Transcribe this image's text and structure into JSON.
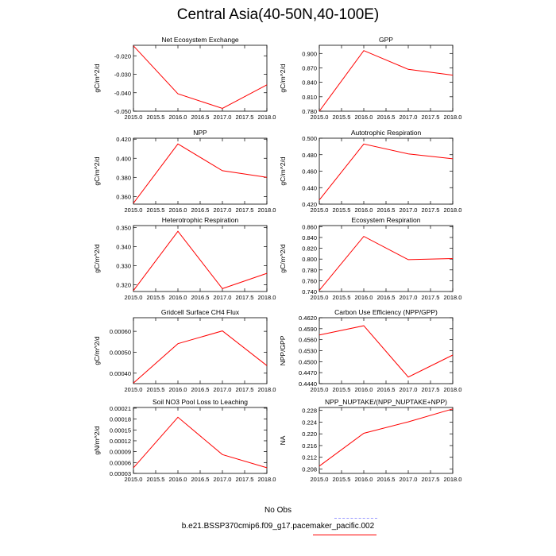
{
  "title": "Central Asia(40-50N,40-100E)",
  "legend": {
    "obs_label": "No Obs",
    "obs_color": "#9999ff",
    "model_label": "b.e21.BSSP370cmip6.f09_g17.pacemaker_pacific.002",
    "model_color": "#ff0000"
  },
  "chart_data": [
    {
      "type": "line",
      "title": "Net Ecosystem Exchange",
      "ylabel": "gC/m^2/d",
      "x": [
        2015,
        2016,
        2017,
        2018
      ],
      "xlim": [
        2015,
        2018
      ],
      "xticks": [
        "2015.0",
        "2015.5",
        "2016.0",
        "2016.5",
        "2017.0",
        "2017.5",
        "2018.0"
      ],
      "series": [
        {
          "values": [
            -0.0146,
            -0.0406,
            -0.0485,
            -0.0357
          ],
          "color": "#ff0000"
        }
      ],
      "ylim": [
        -0.05,
        -0.0143
      ],
      "yticks": [
        "-0.020",
        "-0.030",
        "-0.040",
        "-0.050"
      ],
      "ytick_values": [
        -0.02,
        -0.03,
        -0.04,
        -0.05
      ]
    },
    {
      "type": "line",
      "title": "GPP",
      "ylabel": "gC/m^2/d",
      "x": [
        2015,
        2016,
        2017,
        2018
      ],
      "xlim": [
        2015,
        2018
      ],
      "xticks": [
        "2015.0",
        "2015.5",
        "2016.0",
        "2016.5",
        "2017.0",
        "2017.5",
        "2018.0"
      ],
      "series": [
        {
          "values": [
            0.78,
            0.906,
            0.867,
            0.855
          ],
          "color": "#ff0000"
        }
      ],
      "ylim": [
        0.78,
        0.917
      ],
      "yticks": [
        "0.900",
        "0.870",
        "0.840",
        "0.810",
        "0.780"
      ],
      "ytick_values": [
        0.9,
        0.87,
        0.84,
        0.81,
        0.78
      ]
    },
    {
      "type": "line",
      "title": "NPP",
      "ylabel": "gC/m^2/d",
      "x": [
        2015,
        2016,
        2017,
        2018
      ],
      "xlim": [
        2015,
        2018
      ],
      "xticks": [
        "2015.0",
        "2015.5",
        "2016.0",
        "2016.5",
        "2017.0",
        "2017.5",
        "2018.0"
      ],
      "series": [
        {
          "values": [
            0.353,
            0.415,
            0.387,
            0.38
          ],
          "color": "#ff0000"
        }
      ],
      "ylim": [
        0.352,
        0.421
      ],
      "yticks": [
        "0.420",
        "0.400",
        "0.380",
        "0.360"
      ],
      "ytick_values": [
        0.42,
        0.4,
        0.38,
        0.36
      ]
    },
    {
      "type": "line",
      "title": "Autotrophic Respiration",
      "ylabel": "gC/m^2/d",
      "x": [
        2015,
        2016,
        2017,
        2018
      ],
      "xlim": [
        2015,
        2018
      ],
      "xticks": [
        "2015.0",
        "2015.5",
        "2016.0",
        "2016.5",
        "2017.0",
        "2017.5",
        "2018.0"
      ],
      "series": [
        {
          "values": [
            0.425,
            0.493,
            0.481,
            0.475
          ],
          "color": "#ff0000"
        }
      ],
      "ylim": [
        0.42,
        0.5
      ],
      "yticks": [
        "0.500",
        "0.480",
        "0.460",
        "0.440",
        "0.420"
      ],
      "ytick_values": [
        0.5,
        0.48,
        0.46,
        0.44,
        0.42
      ]
    },
    {
      "type": "line",
      "title": "Heterotrophic Respiration",
      "ylabel": "gC/m^2/d",
      "x": [
        2015,
        2016,
        2017,
        2018
      ],
      "xlim": [
        2015,
        2018
      ],
      "xticks": [
        "2015.0",
        "2015.5",
        "2016.0",
        "2016.5",
        "2017.0",
        "2017.5",
        "2018.0"
      ],
      "series": [
        {
          "values": [
            0.317,
            0.348,
            0.318,
            0.326
          ],
          "color": "#ff0000"
        }
      ],
      "ylim": [
        0.3165,
        0.351
      ],
      "yticks": [
        "0.350",
        "0.340",
        "0.330",
        "0.320"
      ],
      "ytick_values": [
        0.35,
        0.34,
        0.33,
        0.32
      ]
    },
    {
      "type": "line",
      "title": "Ecosystem Respiration",
      "ylabel": "gC/m^2/d",
      "x": [
        2015,
        2016,
        2017,
        2018
      ],
      "xlim": [
        2015,
        2018
      ],
      "xticks": [
        "2015.0",
        "2015.5",
        "2016.0",
        "2016.5",
        "2017.0",
        "2017.5",
        "2018.0"
      ],
      "series": [
        {
          "values": [
            0.742,
            0.842,
            0.799,
            0.801
          ],
          "color": "#ff0000"
        }
      ],
      "ylim": [
        0.74,
        0.862
      ],
      "yticks": [
        "0.860",
        "0.840",
        "0.820",
        "0.800",
        "0.780",
        "0.760",
        "0.740"
      ],
      "ytick_values": [
        0.86,
        0.84,
        0.82,
        0.8,
        0.78,
        0.76,
        0.74
      ]
    },
    {
      "type": "line",
      "title": "Gridcell Surface CH4 Flux",
      "ylabel": "gC/m^2/d",
      "x": [
        2015,
        2016,
        2017,
        2018
      ],
      "xlim": [
        2015,
        2018
      ],
      "xticks": [
        "2015.0",
        "2015.5",
        "2016.0",
        "2016.5",
        "2017.0",
        "2017.5",
        "2018.0"
      ],
      "series": [
        {
          "values": [
            0.000353,
            0.000541,
            0.000602,
            0.000436
          ],
          "color": "#ff0000"
        }
      ],
      "ylim": [
        0.00035,
        0.000665
      ],
      "yticks": [
        "0.00060",
        "0.00050",
        "0.00040"
      ],
      "ytick_values": [
        0.0006,
        0.0005,
        0.0004
      ]
    },
    {
      "type": "line",
      "title": "Carbon Use Efficiency (NPP/GPP)",
      "ylabel": "NPP/GPP",
      "x": [
        2015,
        2016,
        2017,
        2018
      ],
      "xlim": [
        2015,
        2018
      ],
      "xticks": [
        "2015.0",
        "2015.5",
        "2016.0",
        "2016.5",
        "2017.0",
        "2017.5",
        "2018.0"
      ],
      "series": [
        {
          "values": [
            0.4573,
            0.4598,
            0.4458,
            0.4518
          ],
          "color": "#ff0000"
        }
      ],
      "ylim": [
        0.444,
        0.462
      ],
      "yticks": [
        "0.4620",
        "0.4590",
        "0.4560",
        "0.4530",
        "0.4500",
        "0.4470",
        "0.4440"
      ],
      "ytick_values": [
        0.462,
        0.459,
        0.456,
        0.453,
        0.45,
        0.447,
        0.444
      ]
    },
    {
      "type": "line",
      "title": "Soil NO3 Pool Loss to Leaching",
      "ylabel": "gN/m^2/d",
      "x": [
        2015,
        2016,
        2017,
        2018
      ],
      "xlim": [
        2015,
        2018
      ],
      "xticks": [
        "2015.0",
        "2015.5",
        "2016.0",
        "2016.5",
        "2017.0",
        "2017.5",
        "2018.0"
      ],
      "series": [
        {
          "values": [
            4.56e-05,
            0.000185,
            8.2e-05,
            4.56e-05
          ],
          "color": "#ff0000"
        }
      ],
      "ylim": [
        3e-05,
        0.000212
      ],
      "yticks": [
        "0.00021",
        "0.00018",
        "0.00015",
        "0.00012",
        "0.00009",
        "0.00006",
        "0.00003"
      ],
      "ytick_values": [
        0.00021,
        0.00018,
        0.00015,
        0.00012,
        9e-05,
        6e-05,
        3e-05
      ]
    },
    {
      "type": "line",
      "title": "NPP_NUPTAKE/(NPP_NUPTAKE+NPP)",
      "ylabel": "NA",
      "x": [
        2015,
        2016,
        2017,
        2018
      ],
      "xlim": [
        2015,
        2018
      ],
      "xticks": [
        "2015.0",
        "2015.5",
        "2016.0",
        "2016.5",
        "2017.0",
        "2017.5",
        "2018.0"
      ],
      "series": [
        {
          "values": [
            0.209,
            0.2202,
            0.2241,
            0.2285
          ],
          "color": "#ff0000"
        }
      ],
      "ylim": [
        0.2065,
        0.229
      ],
      "yticks": [
        "0.228",
        "0.224",
        "0.220",
        "0.216",
        "0.212",
        "0.208"
      ],
      "ytick_values": [
        0.228,
        0.224,
        0.22,
        0.216,
        0.212,
        0.208
      ]
    }
  ]
}
